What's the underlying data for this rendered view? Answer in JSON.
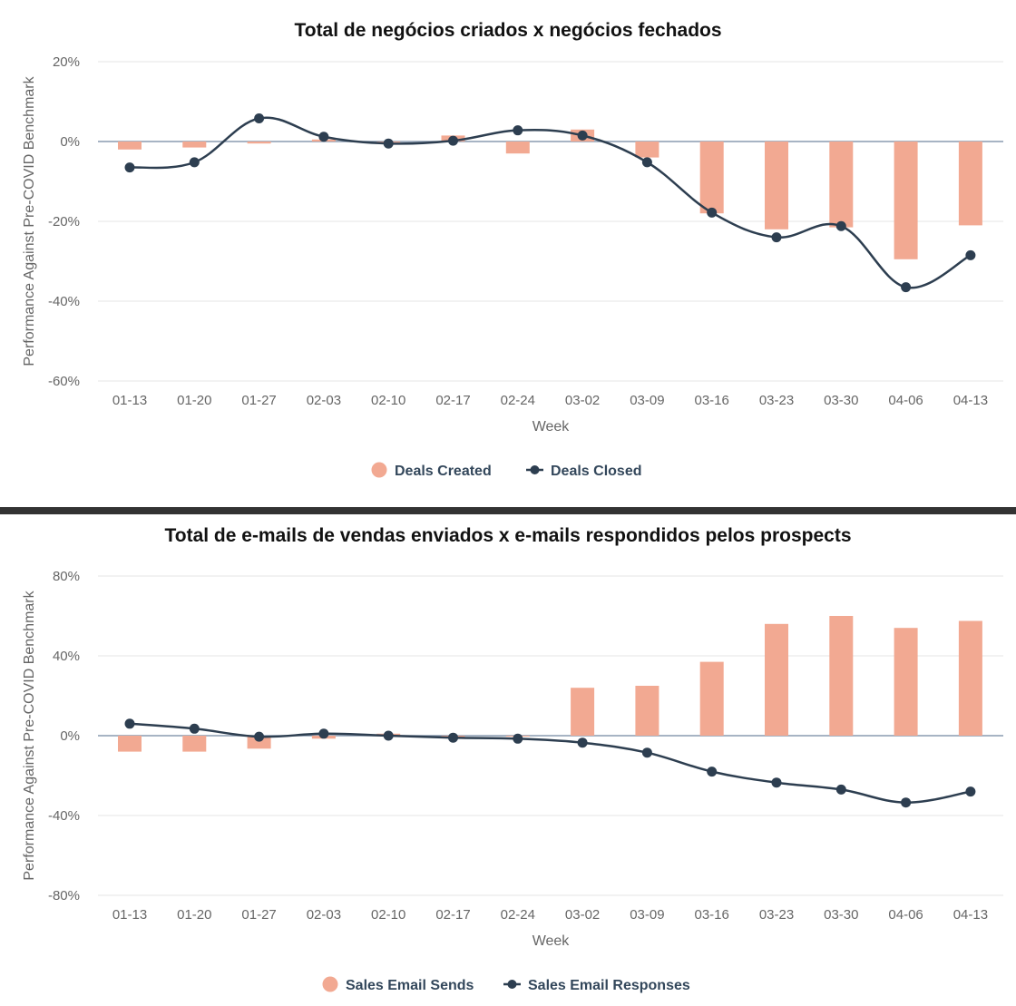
{
  "colors": {
    "bar": "#f2a992",
    "line": "#2d3e50",
    "grid": "#e5e5e5",
    "zero": "#8a9bb0"
  },
  "chart_data": [
    {
      "type": "bar+line",
      "title": "Total de negócios criados x negócios fechados",
      "xlabel": "Week",
      "ylabel": "Performance Against Pre-COVID Benchmark",
      "categories": [
        "01-13",
        "01-20",
        "01-27",
        "02-03",
        "02-10",
        "02-17",
        "02-24",
        "03-02",
        "03-09",
        "03-16",
        "03-23",
        "03-30",
        "04-06",
        "04-13"
      ],
      "yticks": [
        20,
        0,
        -20,
        -40,
        -60
      ],
      "ytick_labels": [
        "20%",
        "0%",
        "-20%",
        "-40%",
        "-60%"
      ],
      "ylim": [
        -60,
        20
      ],
      "series": [
        {
          "name": "Deals Created",
          "type": "bar",
          "values": [
            -2,
            -1.5,
            -0.5,
            0.5,
            0,
            1.5,
            -3,
            3,
            -4,
            -18,
            -22,
            -21.5,
            -29.5,
            -21
          ]
        },
        {
          "name": "Deals Closed",
          "type": "line",
          "values": [
            -6.5,
            -5.2,
            5.8,
            1.2,
            -0.5,
            0.2,
            2.8,
            1.5,
            -5.2,
            -17.8,
            -24,
            -21.2,
            -36.5,
            -28.5
          ]
        }
      ],
      "legend": "bottom"
    },
    {
      "type": "bar+line",
      "title": "Total de e-mails de vendas enviados x e-mails respondidos pelos prospects",
      "xlabel": "Week",
      "ylabel": "Performance Against Pre-COVID Benchmark",
      "categories": [
        "01-13",
        "01-20",
        "01-27",
        "02-03",
        "02-10",
        "02-17",
        "02-24",
        "03-02",
        "03-09",
        "03-16",
        "03-23",
        "03-30",
        "04-06",
        "04-13"
      ],
      "yticks": [
        80,
        40,
        0,
        -40,
        -80
      ],
      "ytick_labels": [
        "80%",
        "40%",
        "0%",
        "-40%",
        "-80%"
      ],
      "ylim": [
        -80,
        80
      ],
      "series": [
        {
          "name": "Sales Email Sends",
          "type": "bar",
          "values": [
            -8,
            -8,
            -6.5,
            -1.5,
            1,
            -1,
            0,
            24,
            25,
            37,
            56,
            60,
            54,
            57.5
          ]
        },
        {
          "name": "Sales Email Responses",
          "type": "line",
          "values": [
            6,
            3.5,
            -0.5,
            1,
            0,
            -1,
            -1.5,
            -3.5,
            -8.5,
            -18,
            -23.5,
            -27,
            -33.5,
            -28
          ]
        }
      ],
      "legend": "bottom"
    }
  ]
}
